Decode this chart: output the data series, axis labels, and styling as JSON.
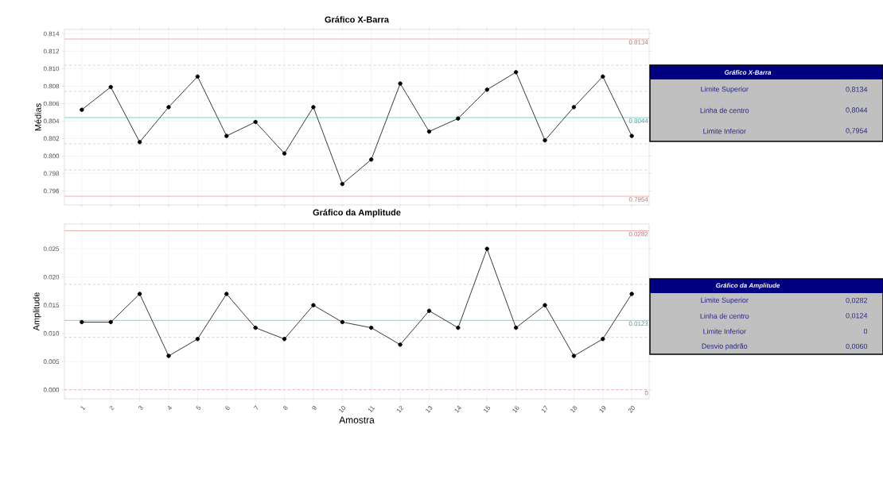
{
  "chart_data": [
    {
      "type": "line",
      "title": "Gráfico X-Barra",
      "ylabel": "Médias",
      "categories": [
        "1",
        "2",
        "3",
        "4",
        "5",
        "6",
        "7",
        "8",
        "9",
        "10",
        "11",
        "12",
        "13",
        "14",
        "15",
        "16",
        "17",
        "18",
        "19",
        "20"
      ],
      "values": [
        0.8053,
        0.8079,
        0.8016,
        0.8056,
        0.8091,
        0.8023,
        0.8039,
        0.8003,
        0.8056,
        0.7968,
        0.7996,
        0.8083,
        0.8028,
        0.8043,
        0.8076,
        0.8096,
        0.8018,
        0.8056,
        0.8091,
        0.8023
      ],
      "color": "#3a3a3a",
      "marker": "circle",
      "grid": true,
      "tick_labels": "y",
      "ylim": [
        0.7944,
        0.8145
      ],
      "yticks": [
        {
          "value": 0.796,
          "label": "0.796"
        },
        {
          "value": 0.798,
          "label": "0.798"
        },
        {
          "value": 0.8,
          "label": "0.800"
        },
        {
          "value": 0.802,
          "label": "0.802"
        },
        {
          "value": 0.804,
          "label": "0.804"
        },
        {
          "value": 0.806,
          "label": "0.806"
        },
        {
          "value": 0.808,
          "label": "0.808"
        },
        {
          "value": 0.81,
          "label": "0.810"
        },
        {
          "value": 0.812,
          "label": "0.812"
        },
        {
          "value": 0.814,
          "label": "0.814"
        }
      ],
      "ref_lines": [
        {
          "axis": "y",
          "value": 0.8134,
          "label": "0.8134",
          "color": "#e89a9a",
          "line_style": "solid"
        },
        {
          "axis": "y",
          "value": 0.8044,
          "label": "0.8044",
          "color": "#5ccdc4",
          "line_style": "solid"
        },
        {
          "axis": "y",
          "value": 0.7954,
          "label": "0.7954",
          "color": "#e89a9a",
          "line_style": "solid"
        },
        {
          "axis": "y",
          "value": 0.8104,
          "color": "#c8c8c8",
          "line_style": "dashed"
        },
        {
          "axis": "y",
          "value": 0.8074,
          "color": "#c8c8c8",
          "line_style": "dashed"
        },
        {
          "axis": "y",
          "value": 0.8014,
          "color": "#c8c8c8",
          "line_style": "dashed"
        },
        {
          "axis": "y",
          "value": 0.7984,
          "color": "#c8c8c8",
          "line_style": "dashed"
        }
      ]
    },
    {
      "type": "other",
      "title": "Gráfico X-Barra",
      "annotations": [
        "Limite Superior",
        "0,8134",
        "Linha de centro",
        "0,8044",
        "Limite Inferior",
        "0,7954"
      ]
    },
    {
      "type": "line",
      "title": "Gráfico da Amplitude",
      "xlabel": "Amostra",
      "ylabel": "Amplitude",
      "categories": [
        "1",
        "2",
        "3",
        "4",
        "5",
        "6",
        "7",
        "8",
        "9",
        "10",
        "11",
        "12",
        "13",
        "14",
        "15",
        "16",
        "17",
        "18",
        "19",
        "20"
      ],
      "values": [
        0.012,
        0.012,
        0.017,
        0.006,
        0.009,
        0.017,
        0.011,
        0.009,
        0.015,
        0.012,
        0.011,
        0.008,
        0.014,
        0.011,
        0.025,
        0.011,
        0.015,
        0.006,
        0.009,
        0.017
      ],
      "color": "#3a3a3a",
      "marker": "circle",
      "grid": true,
      "ylim": [
        -0.0016,
        0.0294
      ],
      "yticks": [
        {
          "value": 0,
          "label": "0.000"
        },
        {
          "value": 0.005,
          "label": "0.005"
        },
        {
          "value": 0.01,
          "label": "0.010"
        },
        {
          "value": 0.015,
          "label": "0.015"
        },
        {
          "value": 0.02,
          "label": "0.020"
        },
        {
          "value": 0.025,
          "label": "0.025"
        }
      ],
      "ref_lines": [
        {
          "axis": "y",
          "value": 0.0282,
          "label": "0.0282",
          "color": "#e89a9a",
          "line_style": "solid"
        },
        {
          "axis": "y",
          "value": 0.0123,
          "label": "0.0123",
          "color": "#5ccdc4",
          "line_style": "solid"
        },
        {
          "axis": "y",
          "value": 0,
          "label": "0",
          "color": "#e89a9a",
          "line_style": "dashed"
        },
        {
          "axis": "y",
          "value": 0.0187,
          "color": "#c8c8c8",
          "line_style": "dashed"
        },
        {
          "axis": "y",
          "value": 0.0093,
          "color": "#c8c8c8",
          "line_style": "dashed"
        }
      ]
    },
    {
      "type": "other",
      "title": "Gráfico da Amplitude",
      "annotations": [
        "Limite Superior",
        "0,0282",
        "Linha de centro",
        "0,0124",
        "Limite Inferior",
        "0",
        "Desvio padrão",
        "0,0060"
      ]
    }
  ]
}
